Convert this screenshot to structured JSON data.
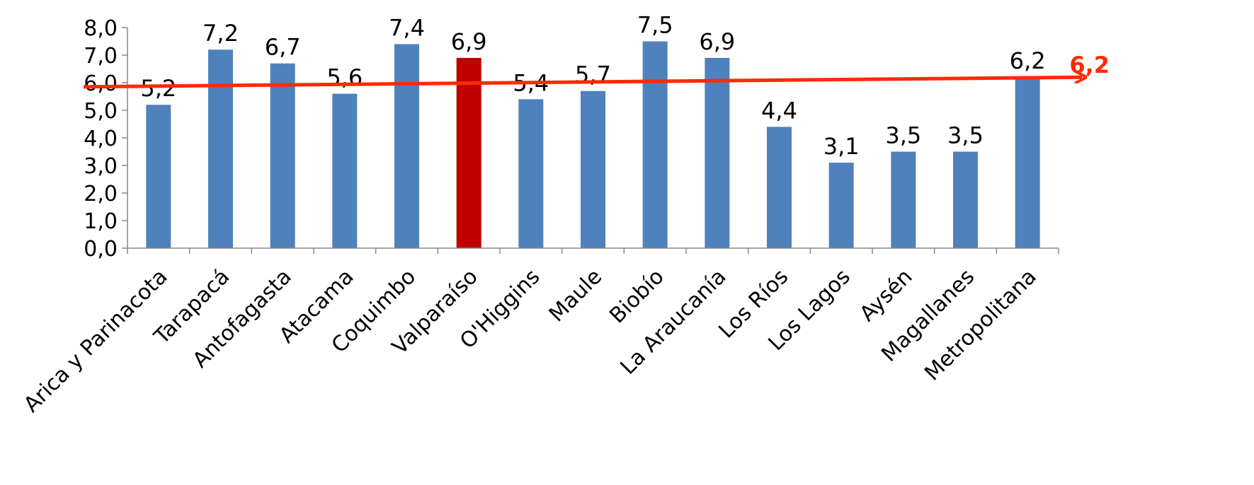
{
  "chart_data": {
    "type": "bar",
    "categories": [
      "Arica y Parinacota",
      "Tarapacá",
      "Antofagasta",
      "Atacama",
      "Coquimbo",
      "Valparaíso",
      "O'Higgins",
      "Maule",
      "Biobío",
      "La Araucanía",
      "Los Ríos",
      "Los Lagos",
      "Aysén",
      "Magallanes",
      "Metropolitana"
    ],
    "values": [
      5.2,
      7.2,
      6.7,
      5.6,
      7.4,
      6.9,
      5.4,
      5.7,
      7.5,
      6.9,
      4.4,
      3.1,
      3.5,
      3.5,
      6.2
    ],
    "value_labels": [
      "5,2",
      "7,2",
      "6,7",
      "5,6",
      "7,4",
      "6,9",
      "5,4",
      "5,7",
      "7,5",
      "6,9",
      "4,4",
      "3,1",
      "3,5",
      "3,5",
      "6,2"
    ],
    "highlighted_category": "Valparaíso",
    "ylim": [
      0,
      8
    ],
    "y_ticks": [
      0,
      1,
      2,
      3,
      4,
      5,
      6,
      7,
      8
    ],
    "y_tick_labels": [
      "0,0",
      "1,0",
      "2,0",
      "3,0",
      "4,0",
      "5,0",
      "6,0",
      "7,0",
      "8,0"
    ],
    "reference_line": {
      "start_value": 5.85,
      "end_value": 6.2,
      "label": "6,2"
    },
    "title": "",
    "xlabel": "",
    "ylabel": "",
    "grid": false,
    "legend": "none",
    "colors": {
      "bar": "#4F81BD",
      "highlight": "#C00000",
      "reference": "#FF2A00",
      "axis": "#888888"
    }
  }
}
